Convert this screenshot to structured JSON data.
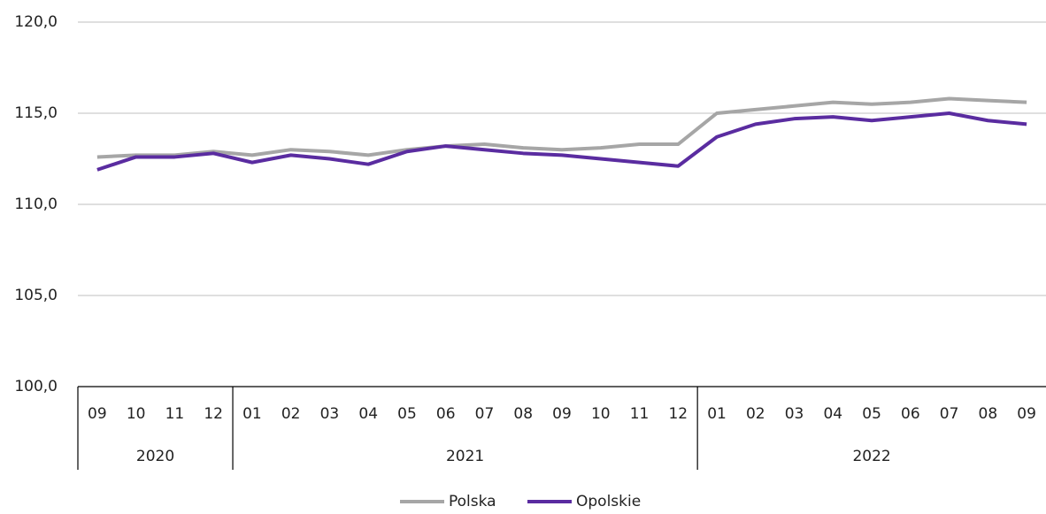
{
  "chart_data": {
    "type": "line",
    "category_groups": [
      {
        "name": "2020",
        "categories": [
          "09",
          "10",
          "11",
          "12"
        ]
      },
      {
        "name": "2021",
        "categories": [
          "01",
          "02",
          "03",
          "04",
          "05",
          "06",
          "07",
          "08",
          "09",
          "10",
          "11",
          "12"
        ]
      },
      {
        "name": "2022",
        "categories": [
          "01",
          "02",
          "03",
          "04",
          "05",
          "06",
          "07",
          "08",
          "09"
        ]
      }
    ],
    "series": [
      {
        "name": "Polska",
        "color": "#a6a6a6",
        "values": [
          112.6,
          112.7,
          112.7,
          112.9,
          112.7,
          113.0,
          112.9,
          112.7,
          113.0,
          113.2,
          113.3,
          113.1,
          113.0,
          113.1,
          113.3,
          113.3,
          115.0,
          115.2,
          115.4,
          115.6,
          115.5,
          115.6,
          115.8,
          115.7,
          115.6
        ]
      },
      {
        "name": "Opolskie",
        "color": "#5a2ca0",
        "values": [
          111.9,
          112.6,
          112.6,
          112.8,
          112.3,
          112.7,
          112.5,
          112.2,
          112.9,
          113.2,
          113.0,
          112.8,
          112.7,
          112.5,
          112.3,
          112.1,
          113.7,
          114.4,
          114.7,
          114.8,
          114.6,
          114.8,
          115.0,
          114.6,
          114.4
        ]
      }
    ],
    "ylim": [
      100,
      120
    ],
    "yticks": [
      {
        "value": 100,
        "label": "100,0"
      },
      {
        "value": 105,
        "label": "105,0"
      },
      {
        "value": 110,
        "label": "110,0"
      },
      {
        "value": 115,
        "label": "115,0"
      },
      {
        "value": 120,
        "label": "120,0"
      }
    ],
    "grid": true,
    "legend": "bottom"
  }
}
